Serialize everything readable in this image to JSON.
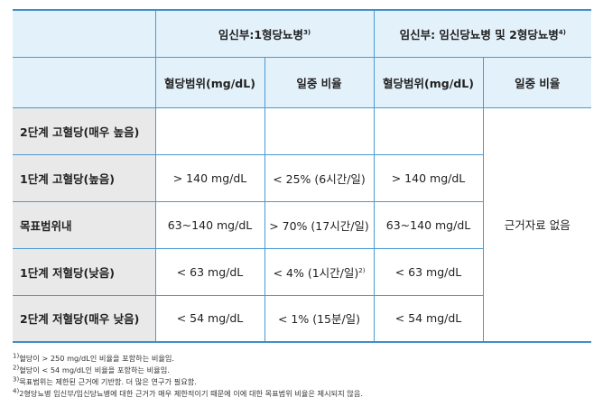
{
  "table": {
    "group_headers": [
      {
        "text": "임신부:1형당뇨병",
        "sup": "3)"
      },
      {
        "text": "임신부: 임신당뇨병 및 2형당뇨병",
        "sup": "4)"
      }
    ],
    "sub_headers": [
      "혈당범위(mg/dL)",
      "일중 비율",
      "혈당범위(mg/dL)",
      "일중 비율"
    ],
    "rows": [
      {
        "label": "2단계 고혈당(매우 높음)",
        "c1": "",
        "c2": "",
        "c3": ""
      },
      {
        "label": "1단계 고혈당(높음)",
        "c1": "> 140 mg/dL",
        "c2": "< 25% (6시간/일)",
        "c3": "> 140 mg/dL"
      },
      {
        "label": "목표범위내",
        "c1": "63~140 mg/dL",
        "c2": "> 70% (17시간/일)",
        "c3": "63~140 mg/dL"
      },
      {
        "label": "1단계 저혈당(낮음)",
        "c1": "< 63 mg/dL",
        "c2": "< 4% (1시간/일)",
        "c2_sup": "2)",
        "c3": "< 63 mg/dL"
      },
      {
        "label": "2단계 저혈당(매우 낮음)",
        "c1": "< 54 mg/dL",
        "c2": "< 1% (15분/일)",
        "c3": "< 54 mg/dL"
      }
    ],
    "merged_cell": "근거자료 없음"
  },
  "footnotes": [
    {
      "num": "1)",
      "text": "혈당이 > 250 mg/dL인 비율을 포함하는 비율임."
    },
    {
      "num": "2)",
      "text": "혈당이 < 54 mg/dL인 비율을 포함하는 비율임."
    },
    {
      "num": "3)",
      "text": "목표범위는 제한된 근거에 기반함. 더 많은 연구가 필요함."
    },
    {
      "num": "4)",
      "text": "2형당뇨병 임신부/임신당뇨병에 대한 근거가 매우 제한적이기 때문에 이에 대한 목표범위 비율은 제시되지 않음."
    }
  ]
}
